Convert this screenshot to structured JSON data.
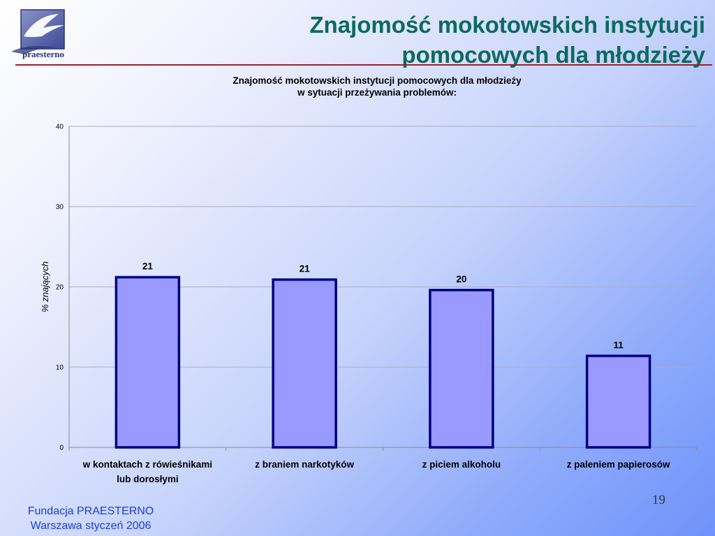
{
  "logo": {
    "text": "praesterno",
    "icon": "seagull-logo-icon"
  },
  "header": {
    "title_line1": "Znajomość mokotowskich instytucji",
    "title_line2": "pomocowych dla młodzieży"
  },
  "footer": {
    "line1": "Fundacja PRAESTERNO",
    "line2": "Warszawa styczeń 2006"
  },
  "page_number": "19",
  "colors": {
    "title": "#0b6a5e",
    "rule": "#9b2030",
    "bar_fill": "#9999ff",
    "bar_stroke": "#000080",
    "footer": "#1a3fd6"
  },
  "chart_data": {
    "type": "bar",
    "title_line1": "Znajomość mokotowskich instytucji pomocowych dla młodzieży",
    "title_line2": "w sytuacji przeżywania problemów:",
    "ylabel": "% znających",
    "ylim": [
      0,
      40
    ],
    "yticks": [
      0,
      10,
      20,
      30,
      40
    ],
    "grid": true,
    "categories": [
      [
        "w kontaktach z rówieśnikami",
        "lub dorosłymi"
      ],
      [
        "z braniem narkotyków"
      ],
      [
        "z piciem alkoholu"
      ],
      [
        "z paleniem papierosów"
      ]
    ],
    "values": [
      21.2,
      20.9,
      19.6,
      11.4
    ],
    "data_labels": [
      "21",
      "21",
      "20",
      "11"
    ]
  }
}
